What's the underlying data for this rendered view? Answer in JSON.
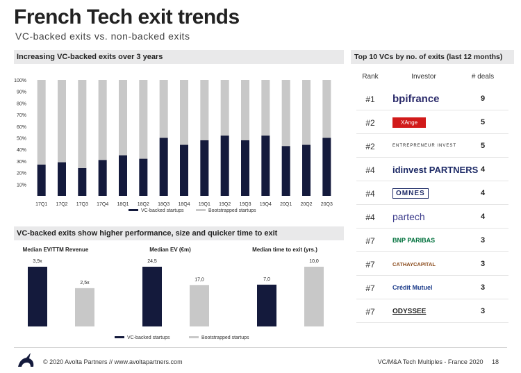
{
  "header": {
    "title": "French Tech exit trends",
    "subtitle": "VC-backed exits vs. non-backed exits"
  },
  "sections": {
    "top_left": "Increasing VC-backed exits over 3 years",
    "top_right": "Top 10 VCs by no. of exits (last 12 months)",
    "bottom_left": "VC-backed exits show higher performance, size and quicker time to exit"
  },
  "colors": {
    "vc_backed": "#141a3c",
    "bootstrapped": "#c8c8c8",
    "band": "#e9e9ea"
  },
  "chart_data": [
    {
      "type": "bar",
      "stacked": true,
      "categories": [
        "17Q1",
        "17Q2",
        "17Q3",
        "17Q4",
        "18Q1",
        "18Q2",
        "18Q3",
        "18Q4",
        "19Q1",
        "19Q2",
        "19Q3",
        "19Q4",
        "20Q1",
        "20Q2",
        "20Q3"
      ],
      "series": [
        {
          "name": "VC-backed startups",
          "values": [
            27,
            29,
            24,
            31,
            35,
            32,
            50,
            44,
            48,
            52,
            48,
            52,
            43,
            44,
            50
          ]
        },
        {
          "name": "Bootstrapped startups",
          "values": [
            73,
            71,
            76,
            69,
            65,
            68,
            50,
            56,
            52,
            48,
            52,
            48,
            57,
            56,
            50
          ]
        }
      ],
      "ylim": [
        0,
        100
      ],
      "yticks": [
        "100%",
        "90%",
        "80%",
        "70%",
        "60%",
        "50%",
        "40%",
        "30%",
        "20%",
        "10%"
      ],
      "legend": [
        "VC-backed startups",
        "Bootstrapped startups"
      ],
      "grid": false
    },
    {
      "type": "bar",
      "title": "Median EV/TTM Revenue",
      "categories": [
        "VC-backed startups",
        "Bootstrapped startups"
      ],
      "values": [
        3.9,
        2.5
      ],
      "labels": [
        "3,9x",
        "2,5x"
      ],
      "ylim": [
        0,
        3.9
      ]
    },
    {
      "type": "bar",
      "title": "Median EV (€m)",
      "categories": [
        "VC-backed startups",
        "Bootstrapped startups"
      ],
      "values": [
        24.5,
        17.0
      ],
      "labels": [
        "24,5",
        "17,0"
      ],
      "ylim": [
        0,
        24.5
      ]
    },
    {
      "type": "bar",
      "title": "Median time to exit (yrs.)",
      "categories": [
        "VC-backed startups",
        "Bootstrapped startups"
      ],
      "values": [
        7.0,
        10.0
      ],
      "labels": [
        "7,0",
        "10,0"
      ],
      "ylim": [
        0,
        10.0
      ]
    }
  ],
  "bottom_legend": [
    "VC-backed startups",
    "Bootstrapped startups"
  ],
  "vc_table": {
    "headers": {
      "rank": "Rank",
      "investor": "Investor",
      "deals": "# deals"
    },
    "rows": [
      {
        "rank": "#1",
        "investor": "bpifrance",
        "logo": "bpifrance-logo",
        "deals": "9"
      },
      {
        "rank": "#2",
        "investor": "XAnge",
        "logo": "xange-logo",
        "deals": "5"
      },
      {
        "rank": "#2",
        "investor": "ENTREPRENEUR INVEST",
        "logo": "entrepreneur-invest-logo",
        "deals": "5"
      },
      {
        "rank": "#4",
        "investor": "idinvest PARTNERS",
        "logo": "idinvest-logo",
        "deals": "4"
      },
      {
        "rank": "#4",
        "investor": "OMNES",
        "logo": "omnes-logo",
        "deals": "4"
      },
      {
        "rank": "#4",
        "investor": "partech",
        "logo": "partech-logo",
        "deals": "4"
      },
      {
        "rank": "#7",
        "investor": "BNP PARIBAS",
        "logo": "bnp-logo",
        "deals": "3"
      },
      {
        "rank": "#7",
        "investor": "CATHAYCAPITAL",
        "logo": "cathay-logo",
        "deals": "3"
      },
      {
        "rank": "#7",
        "investor": "Crédit Mutuel",
        "logo": "credit-mutuel-logo",
        "deals": "3"
      },
      {
        "rank": "#7",
        "investor": "ODYSSEE",
        "logo": "odyssee-logo",
        "deals": "3"
      }
    ]
  },
  "footer": {
    "left": "© 2020 Avolta Partners // www.avoltapartners.com",
    "right": "VC/M&A Tech Multiples - France 2020",
    "page": "18"
  }
}
